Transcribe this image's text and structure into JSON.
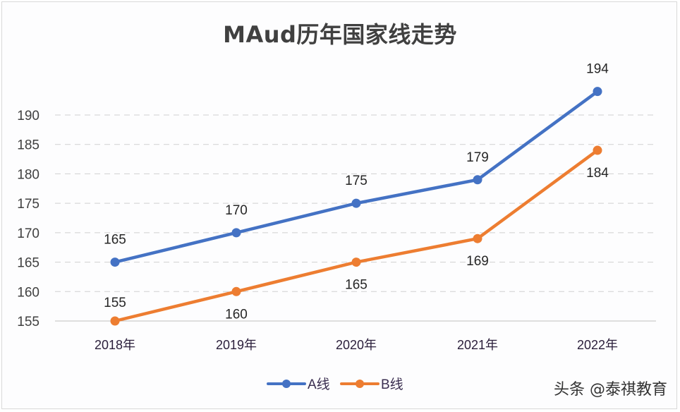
{
  "chart_data": {
    "type": "line",
    "title": "MAud历年国家线走势",
    "xlabel": "",
    "ylabel": "",
    "categories": [
      "2018年",
      "2019年",
      "2020年",
      "2021年",
      "2022年"
    ],
    "series": [
      {
        "name": "A线",
        "color": "#4472c4",
        "values": [
          165,
          170,
          175,
          179,
          194
        ]
      },
      {
        "name": "B线",
        "color": "#ed7d31",
        "values": [
          155,
          160,
          165,
          169,
          184
        ]
      }
    ],
    "yticks": [
      155,
      160,
      165,
      170,
      175,
      180,
      185,
      190
    ],
    "ylim": [
      155,
      190
    ],
    "grid": "horizontal dashed",
    "legend_position": "bottom",
    "data_labels": true
  },
  "header": {
    "title": "MAud历年国家线走势"
  },
  "legend": {
    "a_label": "A线",
    "b_label": "B线"
  },
  "watermark": {
    "text": "头条 @泰祺教育"
  }
}
